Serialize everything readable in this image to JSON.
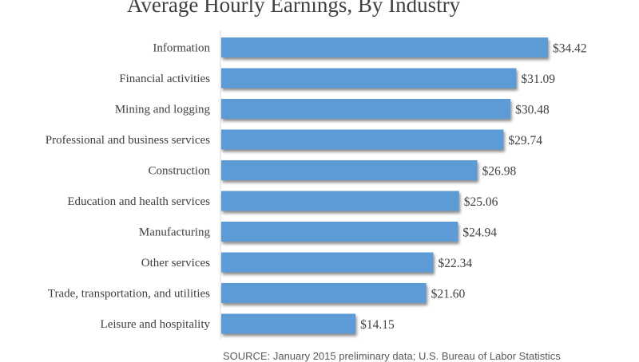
{
  "chart_data": {
    "type": "bar",
    "orientation": "horizontal",
    "title": "Average Hourly Earnings, By Industry",
    "categories": [
      "Information",
      "Financial activities",
      "Mining and logging",
      "Professional and business services",
      "Construction",
      "Education and health services",
      "Manufacturing",
      "Other services",
      "Trade, transportation, and utilities",
      "Leisure and hospitality"
    ],
    "values": [
      34.42,
      31.09,
      30.48,
      29.74,
      26.98,
      25.06,
      24.94,
      22.34,
      21.6,
      14.15
    ],
    "value_labels": [
      "$34.42",
      "$31.09",
      "$30.48",
      "$29.74",
      "$26.98",
      "$25.06",
      "$24.94",
      "$22.34",
      "$21.60",
      "$14.15"
    ],
    "xlabel": "",
    "ylabel": "",
    "xlim": [
      0,
      40
    ],
    "grid": false,
    "bar_color": "#5b9bd5",
    "source": "SOURCE: January 2015 preliminary data; U.S. Bureau of Labor Statistics"
  }
}
